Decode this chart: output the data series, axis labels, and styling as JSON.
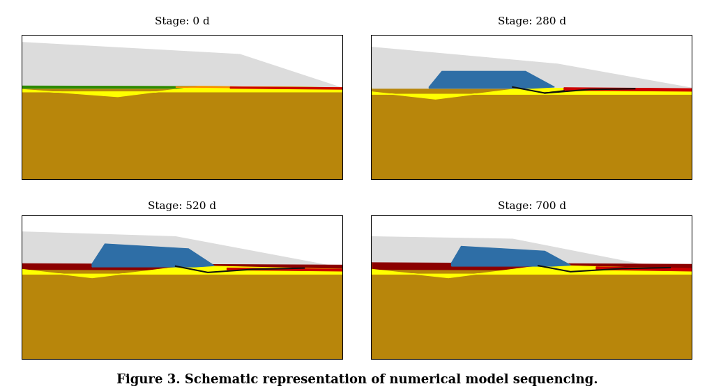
{
  "title": "Figure 3. Schematic representation of numerical model sequencing.",
  "title_fontsize": 13,
  "stages": [
    "Stage: 0 d",
    "Stage: 280 d",
    "Stage: 520 d",
    "Stage: 700 d"
  ],
  "stage_label_fontsize": 11,
  "bg": "#ffffff",
  "col_olive": "#B8860B",
  "col_yellow": "#FFFF00",
  "col_light_gray": "#DCDCDC",
  "col_green": "#2E8B00",
  "col_red": "#CC0000",
  "col_orange": "#FF8C00",
  "col_dark_red": "#8B0000",
  "col_blue": "#2E6EA6",
  "col_black": "#111111"
}
